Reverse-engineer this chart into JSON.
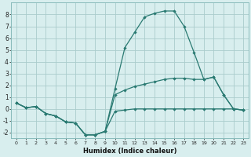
{
  "x": [
    0,
    1,
    2,
    3,
    4,
    5,
    6,
    7,
    8,
    9,
    10,
    11,
    12,
    13,
    14,
    15,
    16,
    17,
    18,
    19,
    20,
    21,
    22,
    23
  ],
  "line_peak": [
    0.5,
    0.1,
    0.2,
    -0.4,
    -0.6,
    -1.1,
    -1.2,
    -2.2,
    -2.2,
    -1.9,
    1.7,
    5.2,
    6.5,
    7.8,
    8.1,
    8.3,
    8.3,
    7.0,
    4.8,
    2.5,
    2.7,
    1.2,
    0.0,
    -0.1
  ],
  "line_mid": [
    0.5,
    0.1,
    0.2,
    -0.4,
    -0.6,
    -1.1,
    -1.2,
    -2.2,
    -2.2,
    -1.9,
    1.2,
    1.6,
    1.9,
    2.1,
    2.3,
    2.5,
    2.6,
    2.6,
    2.5,
    2.5,
    2.7,
    1.2,
    0.0,
    -0.1
  ],
  "line_bot": [
    0.5,
    0.1,
    0.2,
    -0.4,
    -0.6,
    -1.1,
    -1.2,
    -2.2,
    -2.2,
    -1.9,
    -0.2,
    -0.1,
    0.0,
    0.0,
    0.0,
    0.0,
    0.0,
    0.0,
    0.0,
    0.0,
    0.0,
    0.0,
    0.0,
    -0.1
  ],
  "color": "#2a7a72",
  "bg_color": "#d8eeee",
  "grid_color": "#aacccc",
  "xlabel": "Humidex (Indice chaleur)",
  "ylim": [
    -2.5,
    9.0
  ],
  "xlim": [
    -0.5,
    23.5
  ],
  "yticks": [
    -2,
    -1,
    0,
    1,
    2,
    3,
    4,
    5,
    6,
    7,
    8
  ],
  "xticks": [
    0,
    1,
    2,
    3,
    4,
    5,
    6,
    7,
    8,
    9,
    10,
    11,
    12,
    13,
    14,
    15,
    16,
    17,
    18,
    19,
    20,
    21,
    22,
    23
  ]
}
